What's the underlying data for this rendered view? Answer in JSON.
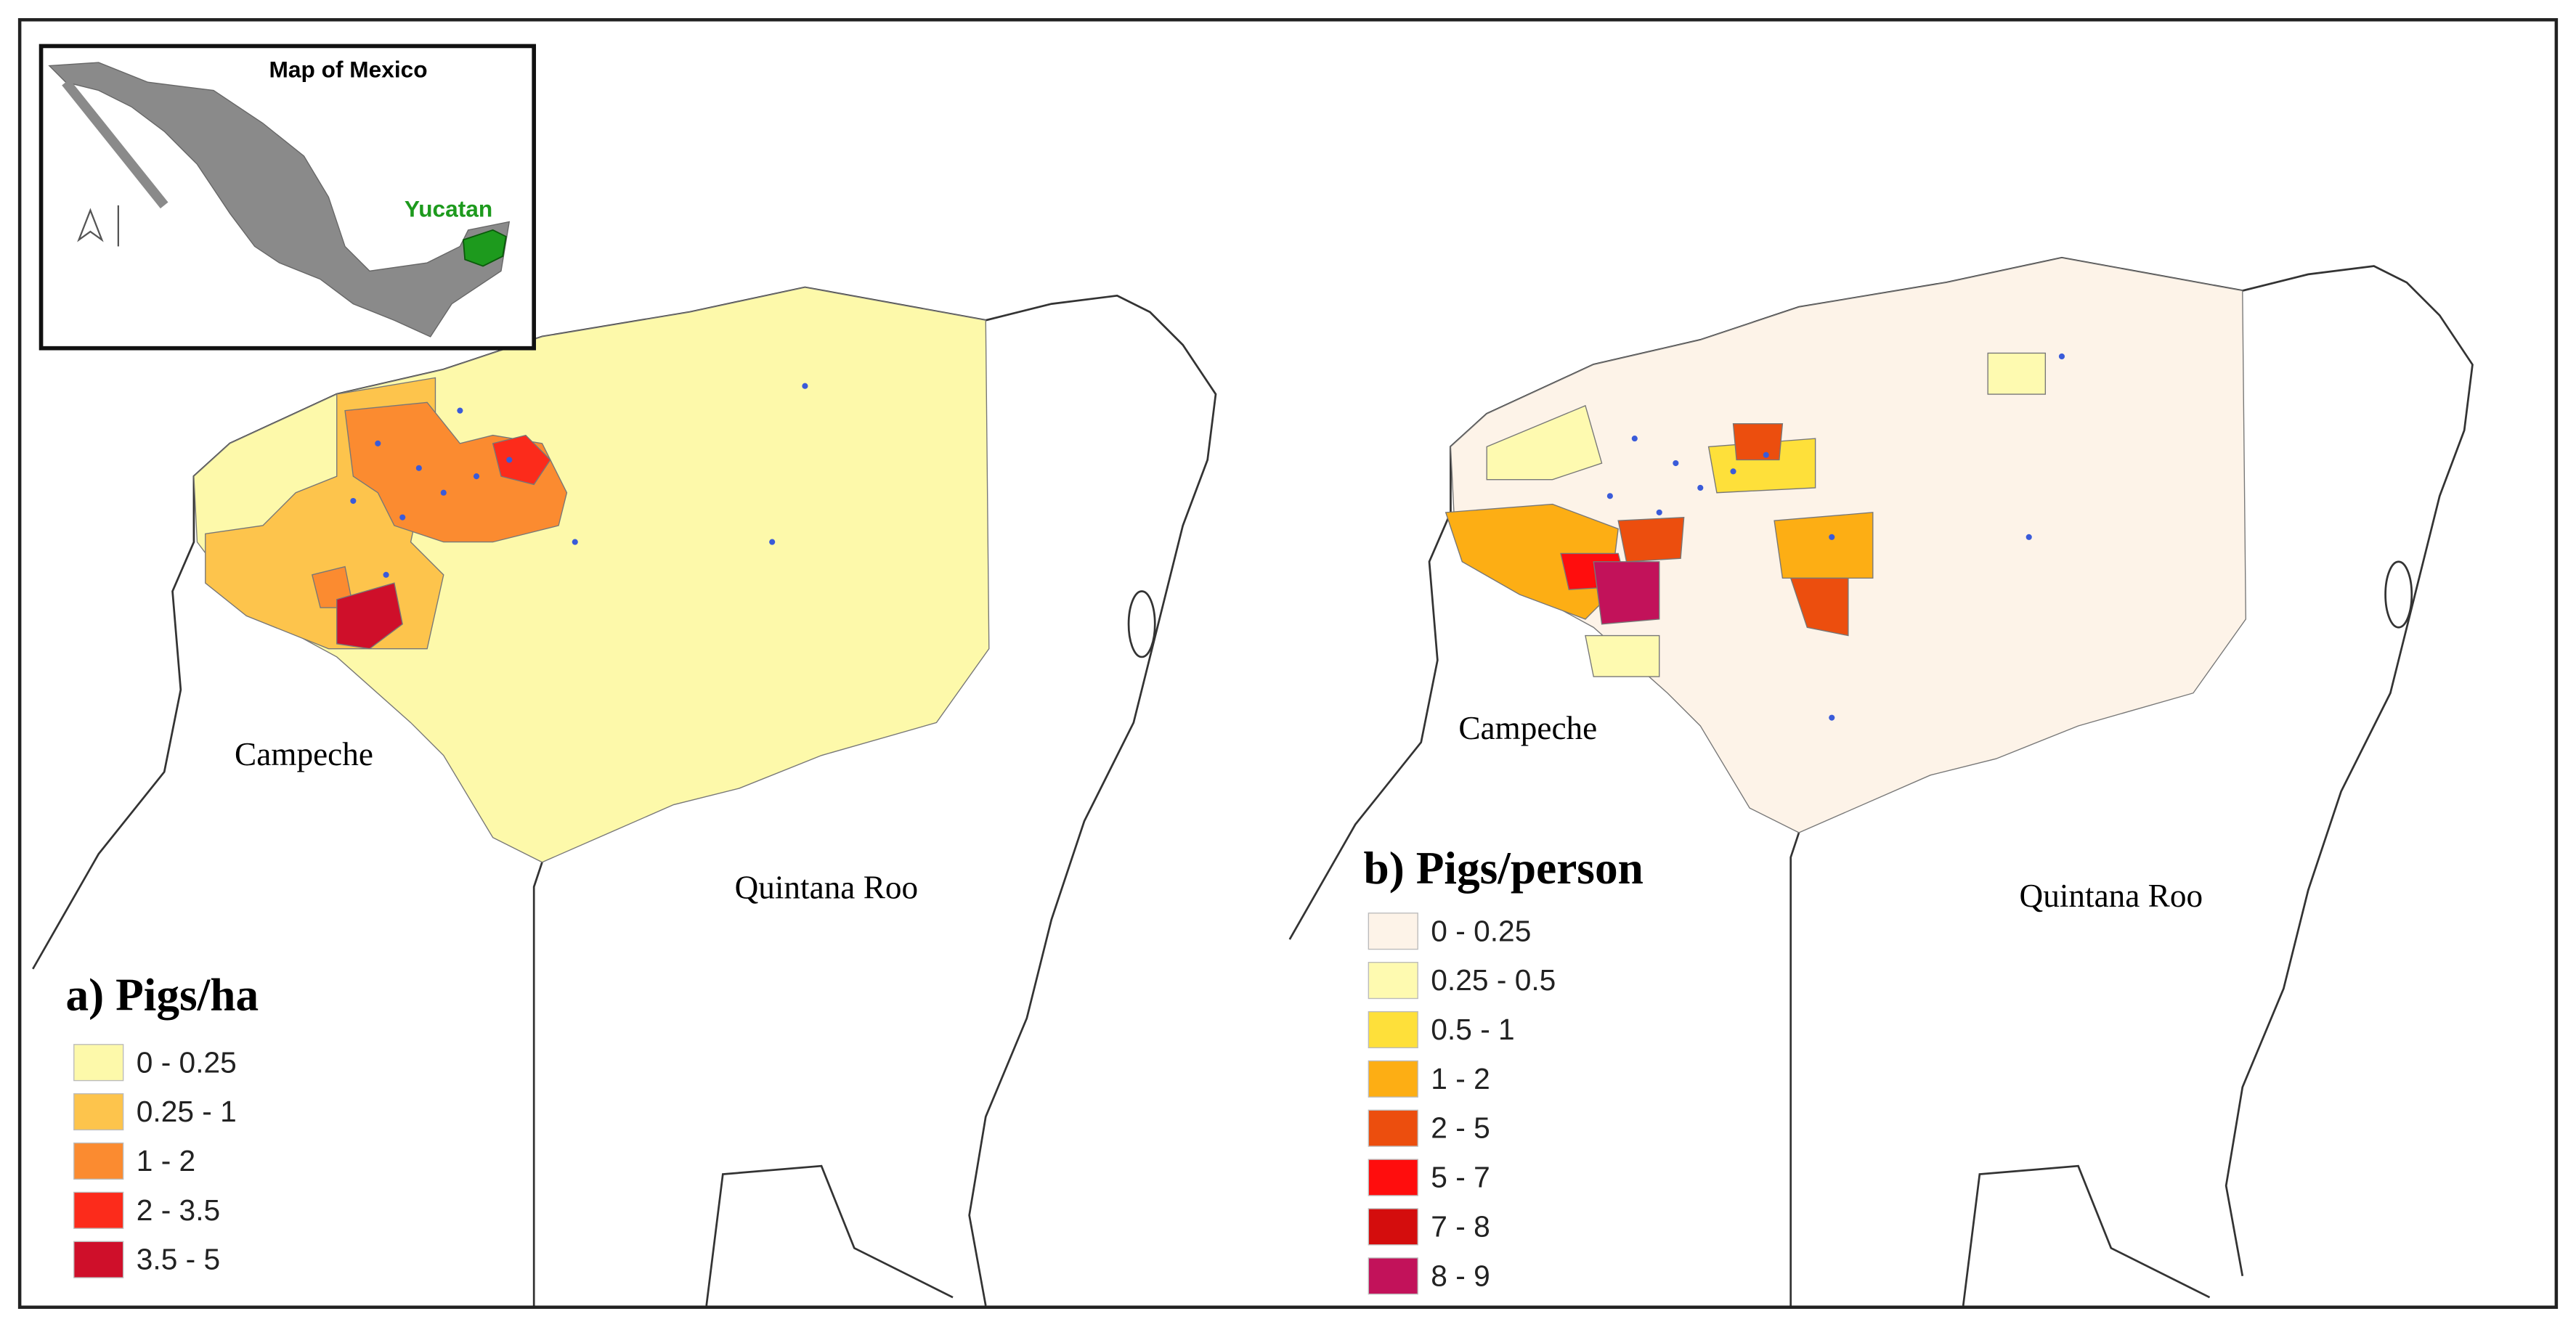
{
  "inset": {
    "title": "Map of Mexico",
    "highlight": "Yucatan"
  },
  "panels": [
    {
      "labels": [
        "Campeche",
        "Quintana Roo"
      ],
      "legend": {
        "title": "a) Pigs/ha",
        "items": [
          {
            "label": "0 - 0.25",
            "color": "#fdf9aa"
          },
          {
            "label": "0.25 - 1",
            "color": "#fdc44c"
          },
          {
            "label": "1 - 2",
            "color": "#fb8b30"
          },
          {
            "label": "2 - 3.5",
            "color": "#fc2b1b"
          },
          {
            "label": "3.5 - 5",
            "color": "#cf0f2a"
          }
        ]
      }
    },
    {
      "labels": [
        "Campeche",
        "Quintana Roo"
      ],
      "legend": {
        "title": "b) Pigs/person",
        "items": [
          {
            "label": "0 - 0.25",
            "color": "#fdf3e8"
          },
          {
            "label": "0.25 - 0.5",
            "color": "#fefab0"
          },
          {
            "label": "0.5 - 1",
            "color": "#fee03a"
          },
          {
            "label": "1 - 2",
            "color": "#fdae14"
          },
          {
            "label": "2 - 5",
            "color": "#ec4e0e"
          },
          {
            "label": "5 - 7",
            "color": "#ff0d0d"
          },
          {
            "label": "7 - 8",
            "color": "#d40d0d"
          },
          {
            "label": "8 - 9",
            "color": "#c2125a"
          }
        ]
      }
    }
  ]
}
